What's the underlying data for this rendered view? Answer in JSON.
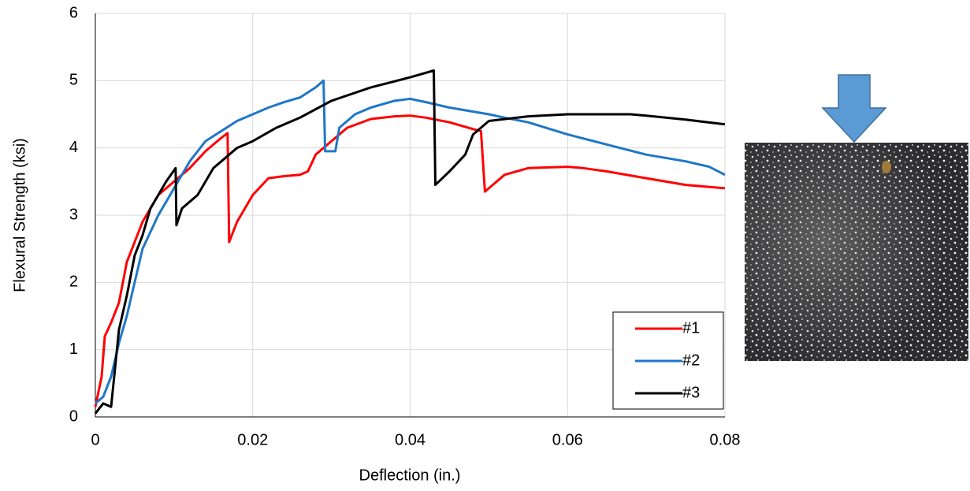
{
  "chart_data": {
    "type": "line",
    "xlabel": "Deflection (in.)",
    "ylabel": "Flexural Strength (ksi)",
    "xlim": [
      0,
      0.08
    ],
    "xticks": [
      0,
      0.02,
      0.04,
      0.06,
      0.08
    ],
    "ylim": [
      0,
      6
    ],
    "yticks": [
      0,
      1,
      2,
      3,
      4,
      5,
      6
    ],
    "grid": true,
    "legend": "lower right",
    "series": [
      {
        "name": "#1",
        "color": "#ff0000",
        "x": [
          0,
          0.0008,
          0.0012,
          0.002,
          0.003,
          0.004,
          0.006,
          0.008,
          0.01,
          0.012,
          0.014,
          0.016,
          0.0168,
          0.017,
          0.018,
          0.02,
          0.022,
          0.024,
          0.026,
          0.027,
          0.028,
          0.03,
          0.032,
          0.035,
          0.038,
          0.04,
          0.042,
          0.045,
          0.048,
          0.049,
          0.0495,
          0.05,
          0.052,
          0.055,
          0.06,
          0.062,
          0.065,
          0.07,
          0.075,
          0.08
        ],
        "values": [
          0.15,
          0.6,
          1.2,
          1.4,
          1.7,
          2.3,
          2.9,
          3.3,
          3.5,
          3.7,
          3.95,
          4.15,
          4.22,
          2.6,
          2.9,
          3.3,
          3.55,
          3.58,
          3.6,
          3.65,
          3.9,
          4.1,
          4.3,
          4.43,
          4.47,
          4.48,
          4.45,
          4.38,
          4.28,
          4.25,
          3.35,
          3.4,
          3.6,
          3.7,
          3.72,
          3.7,
          3.65,
          3.55,
          3.45,
          3.4
        ]
      },
      {
        "name": "#2",
        "color": "#1f77c8",
        "x": [
          0,
          0.001,
          0.002,
          0.003,
          0.004,
          0.005,
          0.006,
          0.008,
          0.01,
          0.012,
          0.014,
          0.016,
          0.018,
          0.02,
          0.022,
          0.024,
          0.026,
          0.028,
          0.029,
          0.0292,
          0.0305,
          0.031,
          0.033,
          0.035,
          0.038,
          0.04,
          0.042,
          0.045,
          0.05,
          0.052,
          0.055,
          0.06,
          0.065,
          0.07,
          0.075,
          0.078,
          0.08
        ],
        "values": [
          0.2,
          0.3,
          0.6,
          1.1,
          1.5,
          2.0,
          2.5,
          3.0,
          3.4,
          3.8,
          4.1,
          4.25,
          4.4,
          4.5,
          4.6,
          4.68,
          4.75,
          4.9,
          5.0,
          3.95,
          3.95,
          4.3,
          4.5,
          4.6,
          4.7,
          4.73,
          4.68,
          4.6,
          4.5,
          4.45,
          4.38,
          4.2,
          4.05,
          3.9,
          3.8,
          3.72,
          3.6
        ]
      },
      {
        "name": "#3",
        "color": "#000000",
        "x": [
          0,
          0.001,
          0.002,
          0.003,
          0.004,
          0.005,
          0.006,
          0.007,
          0.008,
          0.009,
          0.0102,
          0.0103,
          0.011,
          0.013,
          0.015,
          0.018,
          0.02,
          0.023,
          0.026,
          0.03,
          0.035,
          0.04,
          0.043,
          0.0432,
          0.045,
          0.047,
          0.048,
          0.05,
          0.055,
          0.06,
          0.065,
          0.068,
          0.07,
          0.075,
          0.08
        ],
        "values": [
          0.05,
          0.2,
          0.15,
          1.3,
          1.8,
          2.4,
          2.7,
          3.1,
          3.3,
          3.5,
          3.7,
          2.85,
          3.1,
          3.3,
          3.7,
          4.0,
          4.1,
          4.3,
          4.45,
          4.7,
          4.9,
          5.05,
          5.15,
          3.45,
          3.65,
          3.9,
          4.2,
          4.4,
          4.47,
          4.5,
          4.5,
          4.5,
          4.48,
          4.42,
          4.35
        ]
      }
    ]
  }
}
